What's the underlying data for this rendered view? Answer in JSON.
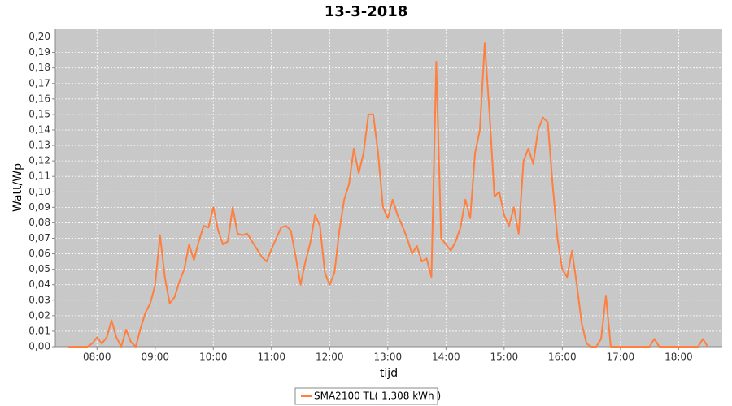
{
  "chart_data": {
    "type": "line",
    "title": "13-3-2018",
    "x_label": "tijd",
    "y_label": "Watt/Wp",
    "x": [
      "07:30",
      "07:35",
      "07:40",
      "07:45",
      "07:50",
      "07:55",
      "08:00",
      "08:05",
      "08:10",
      "08:15",
      "08:20",
      "08:25",
      "08:30",
      "08:35",
      "08:40",
      "08:45",
      "08:50",
      "08:55",
      "09:00",
      "09:05",
      "09:10",
      "09:15",
      "09:20",
      "09:25",
      "09:30",
      "09:35",
      "09:40",
      "09:45",
      "09:50",
      "09:55",
      "10:00",
      "10:05",
      "10:10",
      "10:15",
      "10:20",
      "10:25",
      "10:30",
      "10:35",
      "10:40",
      "10:45",
      "10:50",
      "10:55",
      "11:00",
      "11:05",
      "11:10",
      "11:15",
      "11:20",
      "11:25",
      "11:30",
      "11:35",
      "11:40",
      "11:45",
      "11:50",
      "11:55",
      "12:00",
      "12:05",
      "12:10",
      "12:15",
      "12:20",
      "12:25",
      "12:30",
      "12:35",
      "12:40",
      "12:45",
      "12:50",
      "12:55",
      "13:00",
      "13:05",
      "13:10",
      "13:15",
      "13:20",
      "13:25",
      "13:30",
      "13:35",
      "13:40",
      "13:45",
      "13:50",
      "13:55",
      "14:00",
      "14:05",
      "14:10",
      "14:15",
      "14:20",
      "14:25",
      "14:30",
      "14:35",
      "14:40",
      "14:45",
      "14:50",
      "14:55",
      "15:00",
      "15:05",
      "15:10",
      "15:15",
      "15:20",
      "15:25",
      "15:30",
      "15:35",
      "15:40",
      "15:45",
      "15:50",
      "15:55",
      "16:00",
      "16:05",
      "16:10",
      "16:15",
      "16:20",
      "16:25",
      "16:30",
      "16:35",
      "16:40",
      "16:45",
      "16:50",
      "16:55",
      "17:00",
      "17:05",
      "17:10",
      "17:15",
      "17:20",
      "17:25",
      "17:30",
      "17:35",
      "17:40",
      "17:45",
      "17:50",
      "17:55",
      "18:00",
      "18:05",
      "18:10",
      "18:15",
      "18:20",
      "18:25",
      "18:30"
    ],
    "series": [
      {
        "name": "SMA2100 TL( 1,308 kWh )",
        "color": "#ff7f3f",
        "values": [
          0,
          0,
          0,
          0,
          0,
          0.002,
          0.006,
          0.002,
          0.006,
          0.017,
          0.006,
          0,
          0.011,
          0.003,
          0,
          0.012,
          0.022,
          0.028,
          0.04,
          0.072,
          0.045,
          0.028,
          0.032,
          0.042,
          0.05,
          0.066,
          0.056,
          0.068,
          0.078,
          0.077,
          0.09,
          0.075,
          0.066,
          0.068,
          0.09,
          0.073,
          0.072,
          0.073,
          0.068,
          0.063,
          0.058,
          0.055,
          0.063,
          0.07,
          0.077,
          0.078,
          0.075,
          0.058,
          0.04,
          0.055,
          0.067,
          0.085,
          0.078,
          0.048,
          0.04,
          0.048,
          0.075,
          0.095,
          0.105,
          0.128,
          0.112,
          0.125,
          0.15,
          0.15,
          0.125,
          0.09,
          0.083,
          0.095,
          0.085,
          0.078,
          0.07,
          0.06,
          0.065,
          0.055,
          0.057,
          0.045,
          0.184,
          0.07,
          0.066,
          0.062,
          0.068,
          0.077,
          0.095,
          0.083,
          0.125,
          0.14,
          0.196,
          0.15,
          0.097,
          0.1,
          0.085,
          0.078,
          0.09,
          0.073,
          0.12,
          0.128,
          0.118,
          0.14,
          0.148,
          0.145,
          0.105,
          0.07,
          0.05,
          0.045,
          0.062,
          0.04,
          0.015,
          0.002,
          0,
          0,
          0.005,
          0.033,
          0,
          0,
          0,
          0,
          0,
          0,
          0,
          0,
          0,
          0.005,
          0,
          0,
          0,
          0,
          0,
          0,
          0,
          0,
          0,
          0.005,
          0
        ]
      }
    ],
    "xlim": [
      "07:17",
      "18:45"
    ],
    "xticks": [
      "08:00",
      "09:00",
      "10:00",
      "11:00",
      "12:00",
      "13:00",
      "14:00",
      "15:00",
      "16:00",
      "17:00",
      "18:00"
    ],
    "ylim": [
      0,
      0.205
    ],
    "yticks": [
      {
        "value": 0,
        "label": "0,00"
      },
      {
        "value": 0.01,
        "label": "0,01"
      },
      {
        "value": 0.02,
        "label": "0,02"
      },
      {
        "value": 0.03,
        "label": "0,03"
      },
      {
        "value": 0.04,
        "label": "0,04"
      },
      {
        "value": 0.05,
        "label": "0,05"
      },
      {
        "value": 0.06,
        "label": "0,06"
      },
      {
        "value": 0.07,
        "label": "0,07"
      },
      {
        "value": 0.08,
        "label": "0,08"
      },
      {
        "value": 0.09,
        "label": "0,09"
      },
      {
        "value": 0.1,
        "label": "0,10"
      },
      {
        "value": 0.11,
        "label": "0,11"
      },
      {
        "value": 0.12,
        "label": "0,12"
      },
      {
        "value": 0.13,
        "label": "0,13"
      },
      {
        "value": 0.14,
        "label": "0,14"
      },
      {
        "value": 0.15,
        "label": "0,15"
      },
      {
        "value": 0.16,
        "label": "0,16"
      },
      {
        "value": 0.17,
        "label": "0,17"
      },
      {
        "value": 0.18,
        "label": "0,18"
      },
      {
        "value": 0.19,
        "label": "0,19"
      },
      {
        "value": 0.2,
        "label": "0,20"
      }
    ],
    "grid": true
  }
}
